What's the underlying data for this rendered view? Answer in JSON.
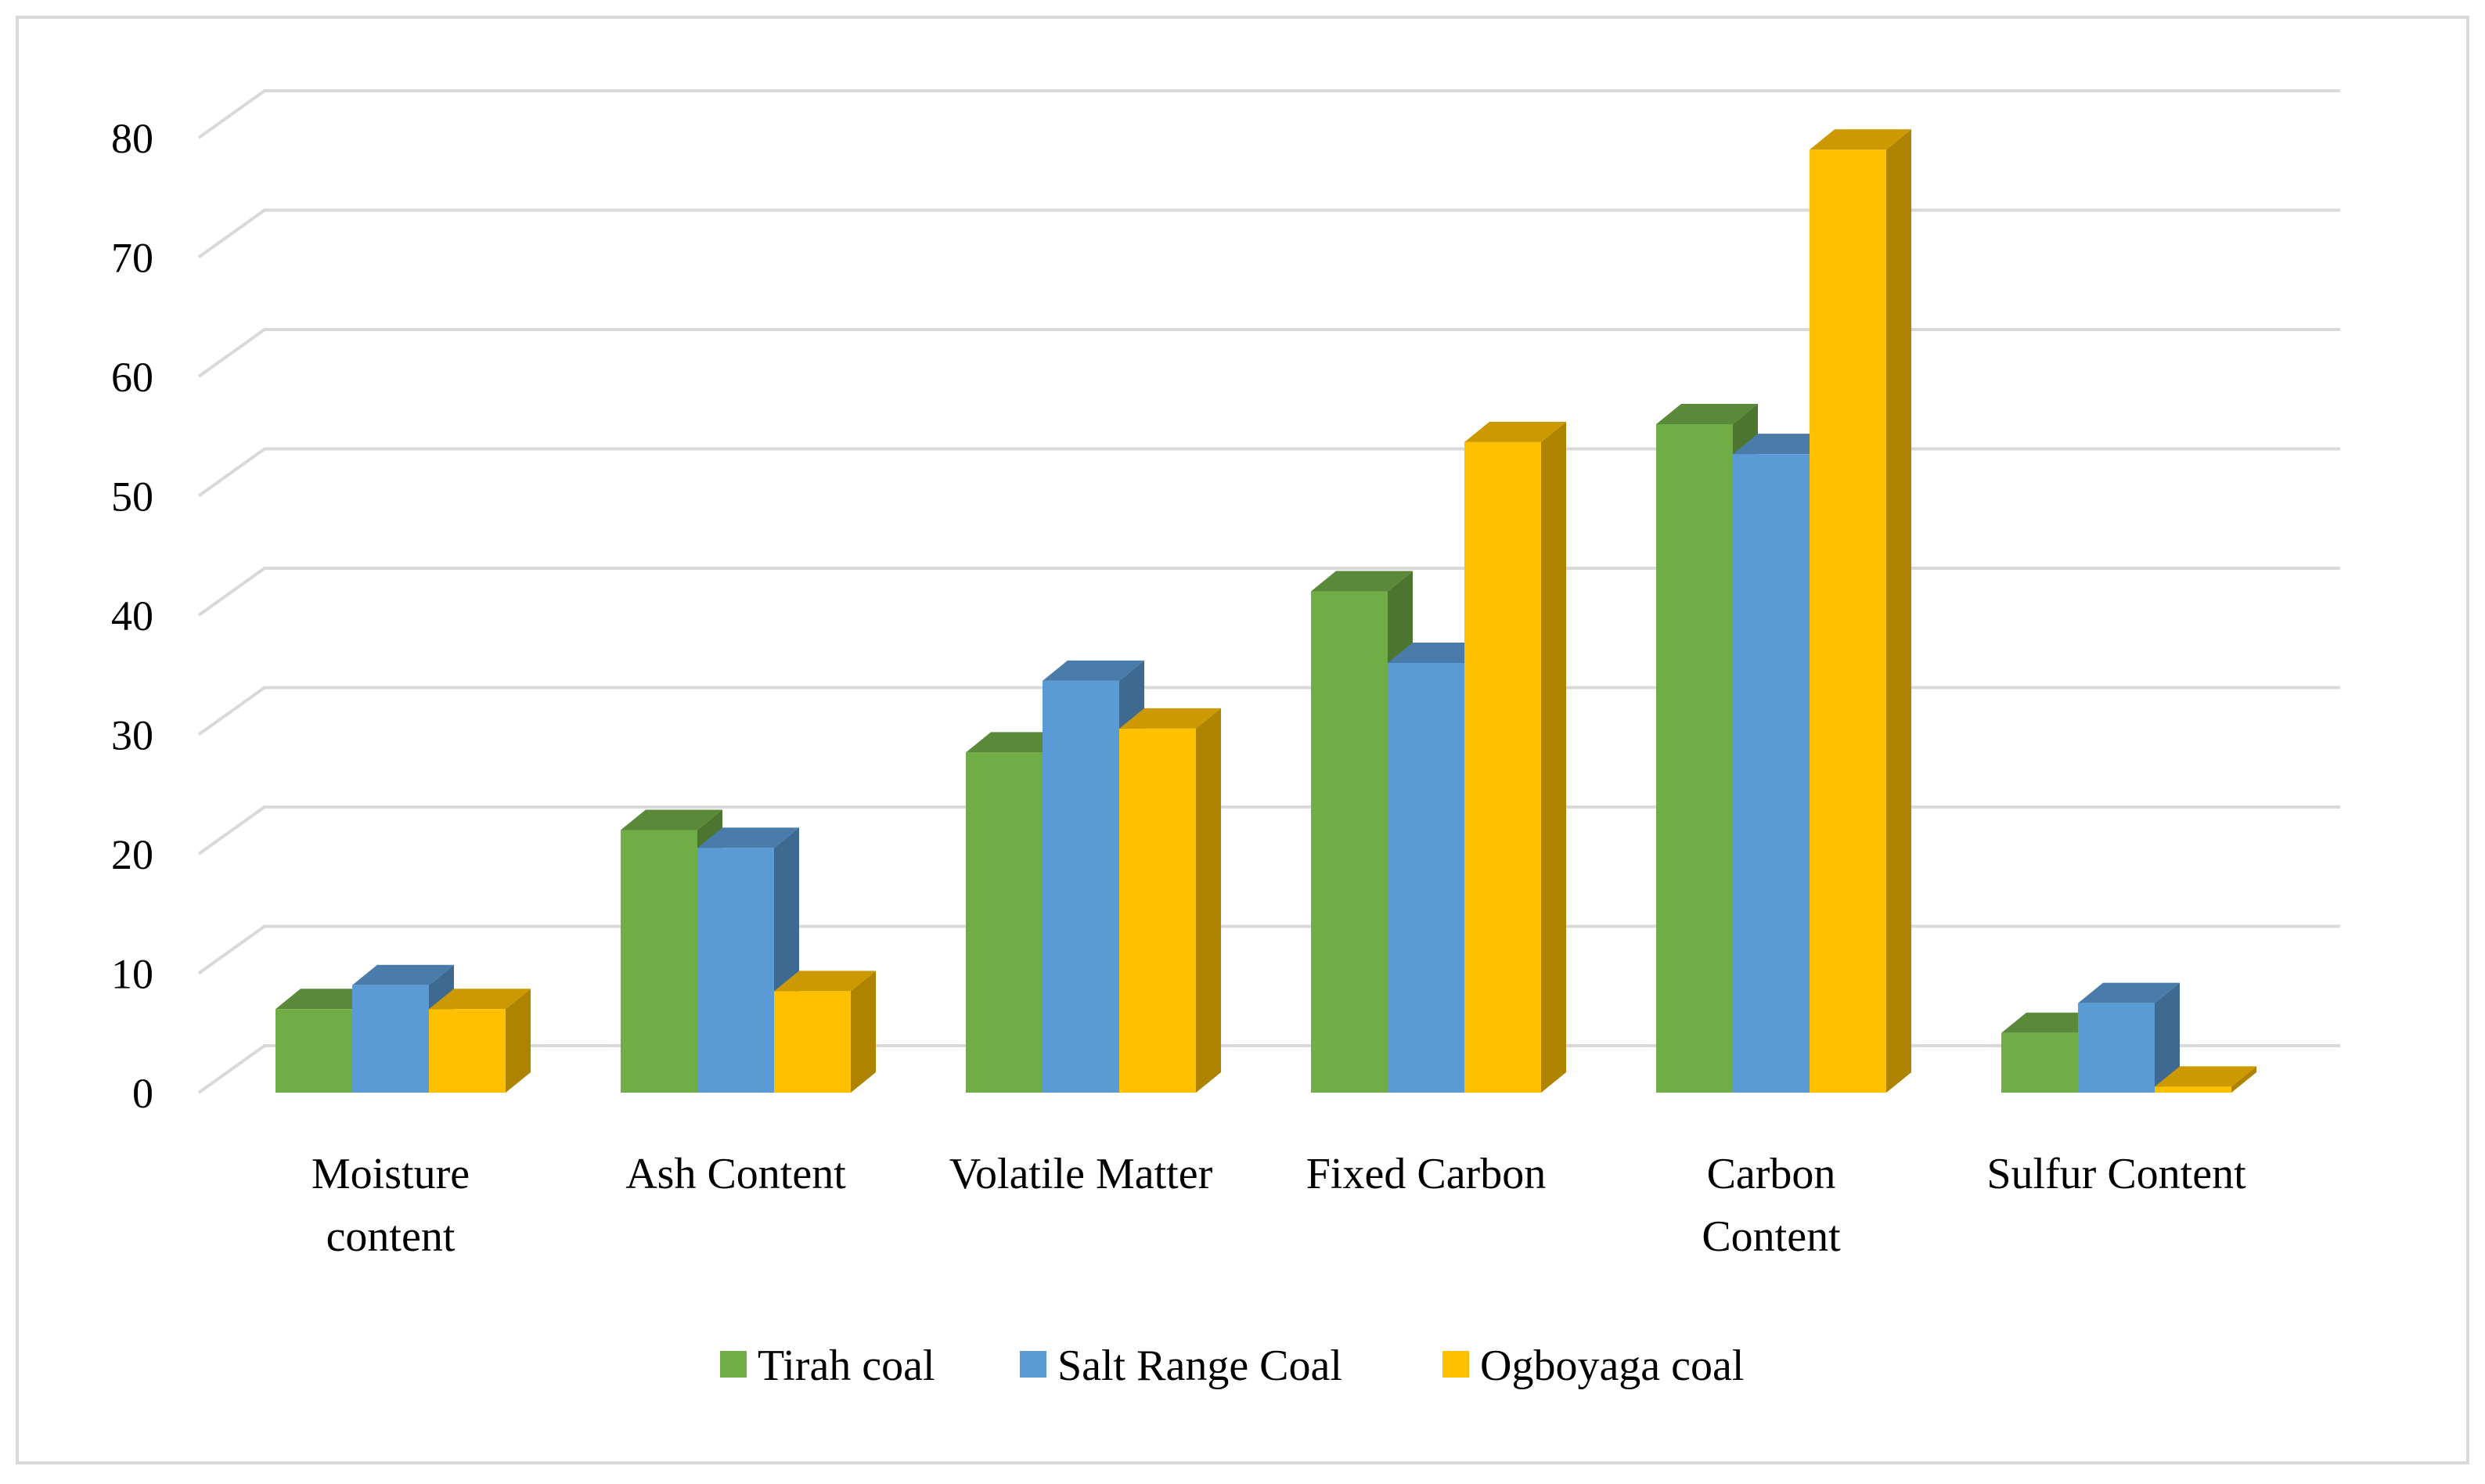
{
  "chart_data": {
    "type": "bar",
    "style": "3d-clustered-column",
    "title": "",
    "xlabel": "",
    "ylabel": "",
    "ylim": [
      0,
      80
    ],
    "yticks": [
      0,
      10,
      20,
      30,
      40,
      50,
      60,
      70,
      80
    ],
    "grid": true,
    "legend_position": "bottom",
    "categories": [
      [
        "Moisture",
        "content"
      ],
      [
        "Ash Content"
      ],
      [
        "Volatile Matter"
      ],
      [
        "Fixed Carbon"
      ],
      [
        "Carbon",
        "Content"
      ],
      [
        "Sulfur Content"
      ]
    ],
    "series": [
      {
        "name": "Tirah coal",
        "color": "#70AD47",
        "values": [
          7,
          22,
          28.5,
          42,
          56,
          5
        ]
      },
      {
        "name": "Salt Range Coal",
        "color": "#5B9BD5",
        "values": [
          9,
          20.5,
          34.5,
          36,
          53.5,
          7.5
        ]
      },
      {
        "name": "Ogboyaga coal",
        "color": "#FFC000",
        "values": [
          7,
          8.5,
          30.5,
          54.5,
          79,
          0.5
        ]
      }
    ]
  }
}
